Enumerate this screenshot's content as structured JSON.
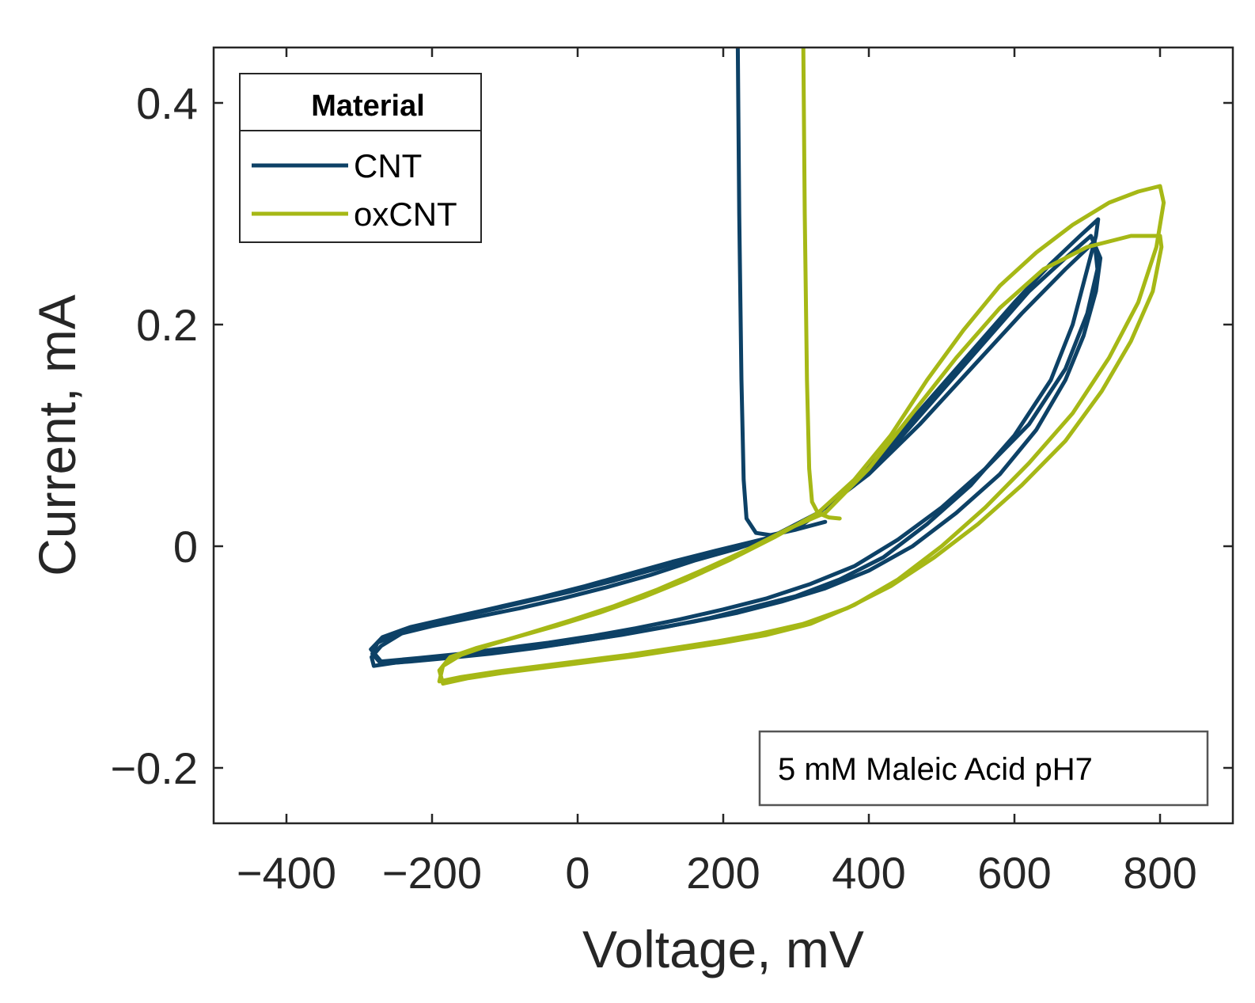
{
  "chart_data": {
    "type": "line",
    "title": "",
    "xlabel": "Voltage, mV",
    "ylabel": "Current, mA",
    "xlim": [
      -500,
      900
    ],
    "ylim": [
      -0.25,
      0.45
    ],
    "xticks": [
      -400,
      -200,
      0,
      200,
      400,
      600,
      800
    ],
    "yticks": [
      -0.2,
      0,
      0.2,
      0.4
    ],
    "xtick_labels": [
      "−400",
      "−200",
      "0",
      "200",
      "400",
      "600",
      "800"
    ],
    "ytick_labels": [
      "−0.2",
      "0",
      "0.2",
      "0.4"
    ],
    "grid": false,
    "legend": {
      "title": "Material",
      "position": "top-left",
      "entries": [
        "CNT",
        "oxCNT"
      ]
    },
    "annotation": "5 mM Maleic Acid pH7",
    "series": [
      {
        "name": "CNT",
        "color": "#0d4166",
        "cycles": [
          {
            "x": [
              220,
              222,
              225,
              228,
              232,
              245,
              265,
              300,
              340
            ],
            "y": [
              0.45,
              0.3,
              0.15,
              0.06,
              0.025,
              0.012,
              0.01,
              0.015,
              0.022
            ]
          },
          {
            "x": [
              265,
              310,
              360,
              420,
              480,
              540,
              600,
              650,
              690,
              715,
              712,
              700,
              680,
              650,
              600,
              540,
              480,
              420,
              360,
              300,
              240,
              180,
              120,
              60,
              0,
              -60,
              -120,
              -180,
              -230,
              -270,
              -282,
              -275,
              -250,
              -200,
              -140,
              -80,
              -20,
              40,
              100,
              160,
              220,
              265
            ],
            "y": [
              0.008,
              0.02,
              0.045,
              0.085,
              0.13,
              0.175,
              0.22,
              0.255,
              0.28,
              0.295,
              0.28,
              0.25,
              0.2,
              0.15,
              0.1,
              0.055,
              0.02,
              -0.01,
              -0.03,
              -0.045,
              -0.055,
              -0.065,
              -0.073,
              -0.08,
              -0.086,
              -0.092,
              -0.097,
              -0.101,
              -0.104,
              -0.106,
              -0.097,
              -0.087,
              -0.08,
              -0.072,
              -0.064,
              -0.056,
              -0.047,
              -0.037,
              -0.026,
              -0.013,
              -0.002,
              0.008
            ]
          },
          {
            "x": [
              265,
              320,
              380,
              440,
              500,
              560,
              620,
              670,
              705,
              718,
              712,
              695,
              670,
              630,
              580,
              520,
              460,
              400,
              340,
              280,
              220,
              160,
              100,
              40,
              -20,
              -80,
              -140,
              -200,
              -250,
              -280,
              -283,
              -270,
              -240,
              -190,
              -130,
              -70,
              -10,
              50,
              110,
              170,
              230,
              265
            ],
            "y": [
              0.008,
              0.025,
              0.055,
              0.095,
              0.14,
              0.185,
              0.23,
              0.26,
              0.28,
              0.26,
              0.23,
              0.19,
              0.15,
              0.105,
              0.065,
              0.03,
              0.0,
              -0.022,
              -0.038,
              -0.05,
              -0.06,
              -0.068,
              -0.075,
              -0.082,
              -0.088,
              -0.093,
              -0.098,
              -0.102,
              -0.105,
              -0.108,
              -0.1,
              -0.09,
              -0.078,
              -0.068,
              -0.059,
              -0.05,
              -0.041,
              -0.031,
              -0.02,
              -0.008,
              0.002,
              0.008
            ]
          },
          {
            "x": [
              265,
              330,
              400,
              470,
              540,
              610,
              670,
              710,
              714,
              700,
              670,
              620,
              560,
              500,
              440,
              380,
              320,
              260,
              200,
              140,
              80,
              20,
              -40,
              -100,
              -160,
              -220,
              -270,
              -284,
              -268,
              -230,
              -170,
              -110,
              -50,
              10,
              70,
              130,
              190,
              240,
              265
            ],
            "y": [
              0.008,
              0.03,
              0.065,
              0.11,
              0.16,
              0.21,
              0.25,
              0.275,
              0.25,
              0.21,
              0.16,
              0.11,
              0.07,
              0.035,
              0.006,
              -0.018,
              -0.034,
              -0.047,
              -0.057,
              -0.066,
              -0.074,
              -0.081,
              -0.087,
              -0.092,
              -0.097,
              -0.101,
              -0.104,
              -0.093,
              -0.082,
              -0.073,
              -0.064,
              -0.055,
              -0.046,
              -0.036,
              -0.025,
              -0.014,
              -0.004,
              0.004,
              0.008
            ]
          }
        ]
      },
      {
        "name": "oxCNT",
        "color": "#a6b816",
        "cycles": [
          {
            "x": [
              310,
              312,
              315,
              318,
              322,
              330,
              345,
              360
            ],
            "y": [
              0.45,
              0.3,
              0.15,
              0.07,
              0.04,
              0.03,
              0.026,
              0.025
            ]
          },
          {
            "x": [
              330,
              380,
              430,
              480,
              530,
              580,
              630,
              680,
              730,
              770,
              800,
              805,
              795,
              770,
              730,
              680,
              620,
              560,
              500,
              440,
              380,
              320,
              260,
              200,
              140,
              80,
              20,
              -40,
              -100,
              -150,
              -185,
              -190,
              -175,
              -140,
              -90,
              -30,
              30,
              90,
              150,
              210,
              270,
              330
            ],
            "y": [
              0.03,
              0.06,
              0.1,
              0.15,
              0.195,
              0.235,
              0.265,
              0.29,
              0.31,
              0.32,
              0.325,
              0.31,
              0.27,
              0.22,
              0.17,
              0.12,
              0.075,
              0.035,
              0.0,
              -0.03,
              -0.053,
              -0.07,
              -0.08,
              -0.087,
              -0.093,
              -0.099,
              -0.104,
              -0.109,
              -0.114,
              -0.119,
              -0.124,
              -0.112,
              -0.1,
              -0.092,
              -0.083,
              -0.072,
              -0.06,
              -0.046,
              -0.03,
              -0.012,
              0.008,
              0.03
            ]
          },
          {
            "x": [
              340,
              400,
              460,
              520,
              580,
              640,
              700,
              760,
              800,
              802,
              790,
              760,
              720,
              670,
              610,
              550,
              490,
              430,
              370,
              310,
              250,
              190,
              130,
              70,
              10,
              -50,
              -110,
              -160,
              -190,
              -185,
              -160,
              -120,
              -70,
              -10,
              50,
              110,
              170,
              230,
              290,
              340
            ],
            "y": [
              0.03,
              0.07,
              0.12,
              0.17,
              0.215,
              0.25,
              0.27,
              0.28,
              0.28,
              0.27,
              0.23,
              0.185,
              0.14,
              0.095,
              0.055,
              0.02,
              -0.01,
              -0.036,
              -0.056,
              -0.07,
              -0.079,
              -0.086,
              -0.092,
              -0.098,
              -0.103,
              -0.108,
              -0.113,
              -0.118,
              -0.122,
              -0.108,
              -0.098,
              -0.089,
              -0.079,
              -0.067,
              -0.054,
              -0.039,
              -0.022,
              -0.004,
              0.016,
              0.03
            ]
          }
        ]
      }
    ]
  }
}
